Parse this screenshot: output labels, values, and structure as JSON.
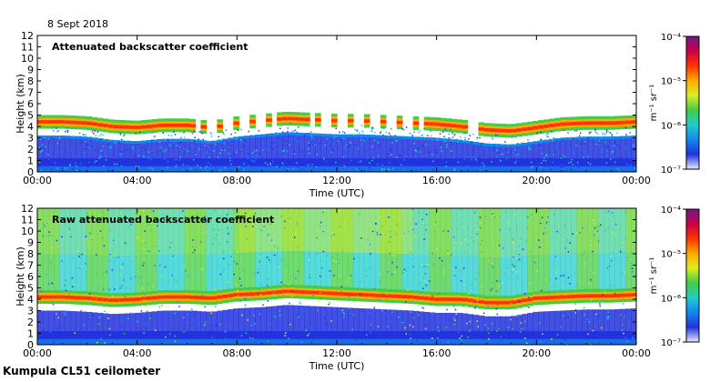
{
  "header": {
    "date": "8 Sept 2018"
  },
  "footer": {
    "instrument": "Kumpula CL51 ceilometer"
  },
  "chart_data": [
    {
      "type": "heatmap",
      "title": "Attenuated backscatter coefficient",
      "xlabel": "Time (UTC)",
      "ylabel": "Height (km)",
      "x_ticks": [
        "00:00",
        "04:00",
        "08:00",
        "12:00",
        "16:00",
        "20:00",
        "00:00"
      ],
      "y_ticks": [
        "0",
        "1",
        "2",
        "3",
        "4",
        "5",
        "6",
        "7",
        "8",
        "9",
        "10",
        "11",
        "12"
      ],
      "xlim_hours": [
        0,
        24
      ],
      "ylim_km": [
        0,
        12
      ],
      "colorbar": {
        "scale": "log",
        "range": [
          1e-07,
          0.0001
        ],
        "tick_labels": [
          "10⁻⁷",
          "10⁻⁶",
          "10⁻⁵",
          "10⁻⁴"
        ],
        "unit_label": "m⁻¹ sr⁻¹"
      },
      "colormap": [
        "#e8e8f8",
        "#2233dd",
        "#1188ee",
        "#22cccc",
        "#44cc44",
        "#ddee22",
        "#ffaa00",
        "#ff3300",
        "#cc0044",
        "#6a1a8a"
      ],
      "cloud_layer_km": [
        [
          0,
          4.4
        ],
        [
          1,
          4.4
        ],
        [
          2,
          4.3
        ],
        [
          3,
          4.0
        ],
        [
          4,
          3.9
        ],
        [
          5,
          4.1
        ],
        [
          6,
          4.1
        ],
        [
          7,
          3.9
        ],
        [
          8,
          4.3
        ],
        [
          9,
          4.5
        ],
        [
          10,
          4.7
        ],
        [
          11,
          4.6
        ],
        [
          12,
          4.5
        ],
        [
          13,
          4.5
        ],
        [
          14,
          4.4
        ],
        [
          15,
          4.3
        ],
        [
          16,
          4.2
        ],
        [
          17,
          4.0
        ],
        [
          18,
          3.7
        ],
        [
          19,
          3.6
        ],
        [
          20,
          3.9
        ],
        [
          21,
          4.2
        ],
        [
          22,
          4.3
        ],
        [
          23,
          4.3
        ],
        [
          24,
          4.4
        ]
      ]
    },
    {
      "type": "heatmap",
      "title": "Raw attenuated backscatter coefficient",
      "xlabel": "Time (UTC)",
      "ylabel": "Height (km)",
      "x_ticks": [
        "00:00",
        "04:00",
        "08:00",
        "12:00",
        "16:00",
        "20:00",
        "00:00"
      ],
      "y_ticks": [
        "0",
        "1",
        "2",
        "3",
        "4",
        "5",
        "6",
        "7",
        "8",
        "9",
        "10",
        "11",
        "12"
      ],
      "xlim_hours": [
        0,
        24
      ],
      "ylim_km": [
        0,
        12
      ],
      "colorbar": {
        "scale": "log",
        "range": [
          1e-07,
          0.0001
        ],
        "tick_labels": [
          "10⁻⁷",
          "10⁻⁶",
          "10⁻⁵",
          "10⁻⁴"
        ],
        "unit_label": "m⁻¹ sr⁻¹"
      },
      "colormap": [
        "#e8e8f8",
        "#2233dd",
        "#1188ee",
        "#22cccc",
        "#44cc44",
        "#ddee22",
        "#ffaa00",
        "#ff3300",
        "#cc0044",
        "#6a1a8a"
      ],
      "cloud_layer_km": [
        [
          0,
          4.2
        ],
        [
          1,
          4.2
        ],
        [
          2,
          4.1
        ],
        [
          3,
          3.9
        ],
        [
          4,
          4.0
        ],
        [
          5,
          4.2
        ],
        [
          6,
          4.2
        ],
        [
          7,
          4.1
        ],
        [
          8,
          4.4
        ],
        [
          9,
          4.5
        ],
        [
          10,
          4.7
        ],
        [
          11,
          4.6
        ],
        [
          12,
          4.5
        ],
        [
          13,
          4.4
        ],
        [
          14,
          4.3
        ],
        [
          15,
          4.2
        ],
        [
          16,
          4.0
        ],
        [
          17,
          4.0
        ],
        [
          18,
          3.7
        ],
        [
          19,
          3.7
        ],
        [
          20,
          4.1
        ],
        [
          21,
          4.2
        ],
        [
          22,
          4.3
        ],
        [
          23,
          4.3
        ],
        [
          24,
          4.4
        ]
      ]
    }
  ]
}
